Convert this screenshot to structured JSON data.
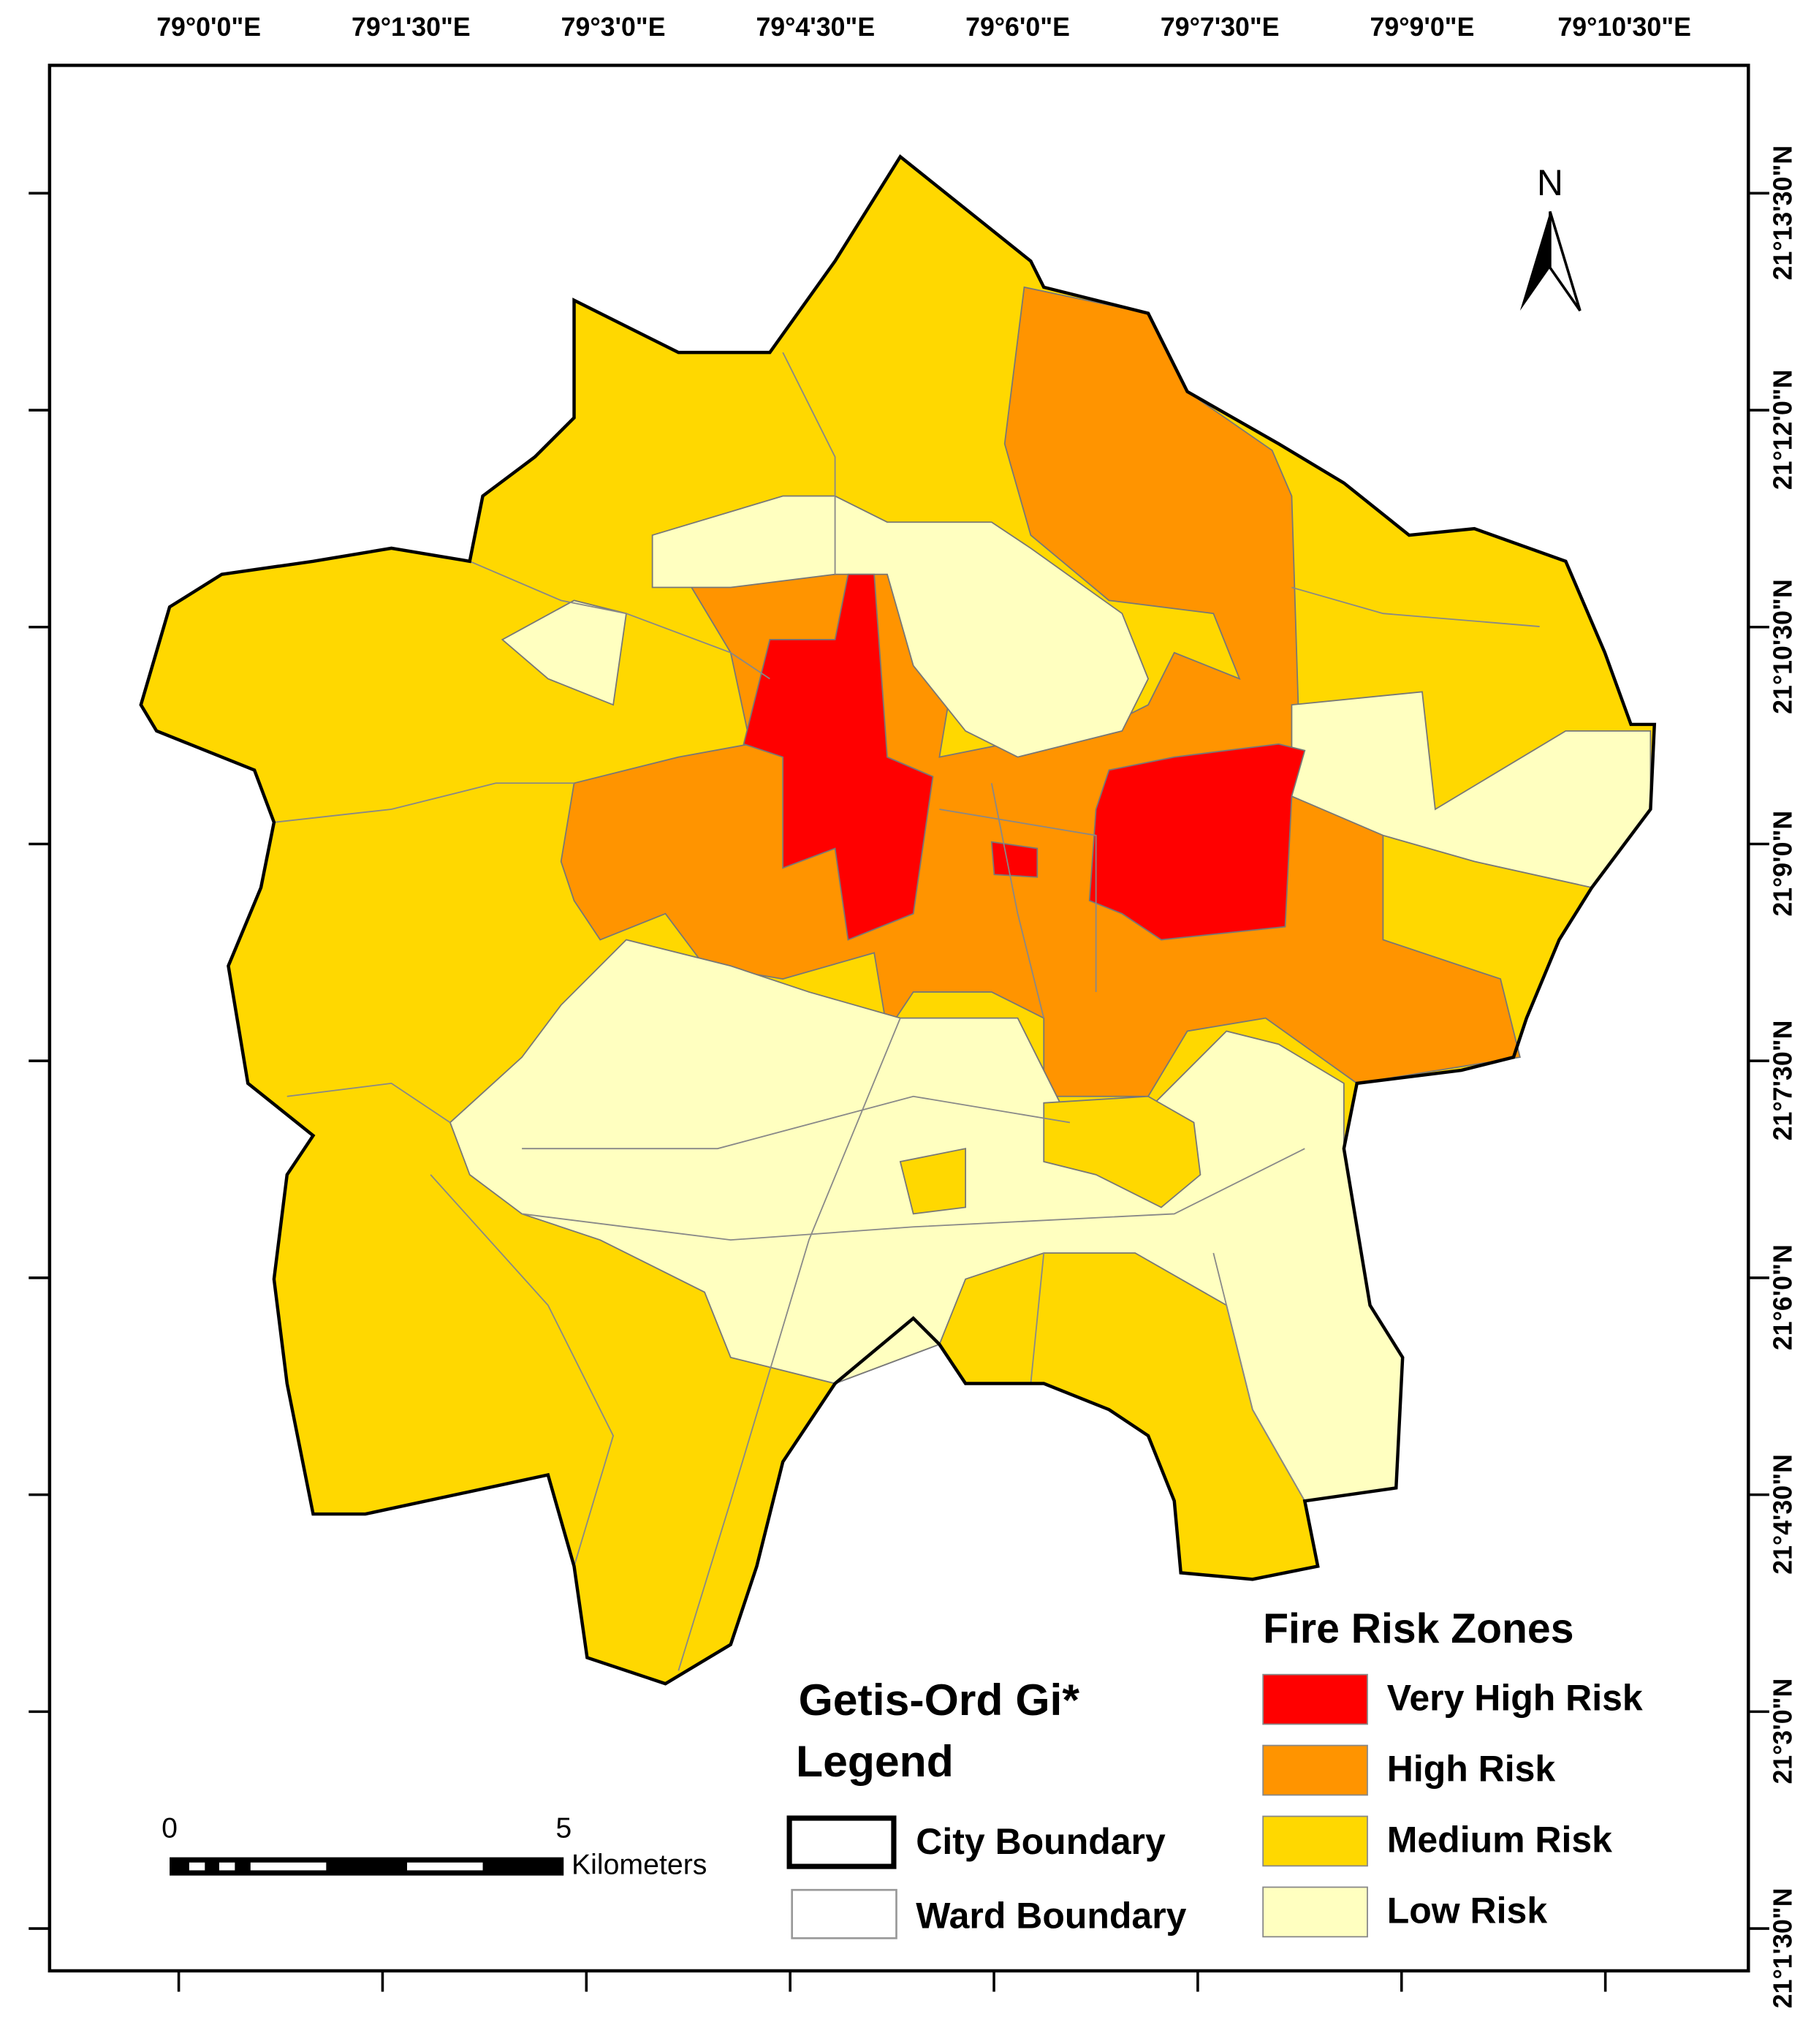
{
  "map": {
    "title": "Getis-Ord Gi*",
    "subtitle": "Legend",
    "north_label": "N",
    "longitude_labels": [
      "79°0'0\"E",
      "79°1'30\"E",
      "79°3'0\"E",
      "79°4'30\"E",
      "79°6'0\"E",
      "79°7'30\"E",
      "79°9'0\"E",
      "79°10'30\"E"
    ],
    "latitude_labels": [
      "21°13'30\"N",
      "21°12'0\"N",
      "21°10'30\"N",
      "21°9'0\"N",
      "21°7'30\"N",
      "21°6'0\"N",
      "21°4'30\"N",
      "21°3'0\"N",
      "21°1'30\"N"
    ],
    "scale_bar": {
      "labels": [
        "0",
        "5"
      ],
      "unit": "Kilometers"
    },
    "boundary_legend": [
      {
        "label": "City Boundary"
      },
      {
        "label": "Ward Boundary"
      }
    ],
    "zone_legend": {
      "title": "Fire Risk Zones",
      "items": [
        {
          "label": "Very High Risk",
          "color": "#ff0000"
        },
        {
          "label": "High Risk",
          "color": "#ff9400"
        },
        {
          "label": "Medium Risk",
          "color": "#ffd800"
        },
        {
          "label": "Low Risk",
          "color": "#ffffc0"
        }
      ]
    }
  }
}
